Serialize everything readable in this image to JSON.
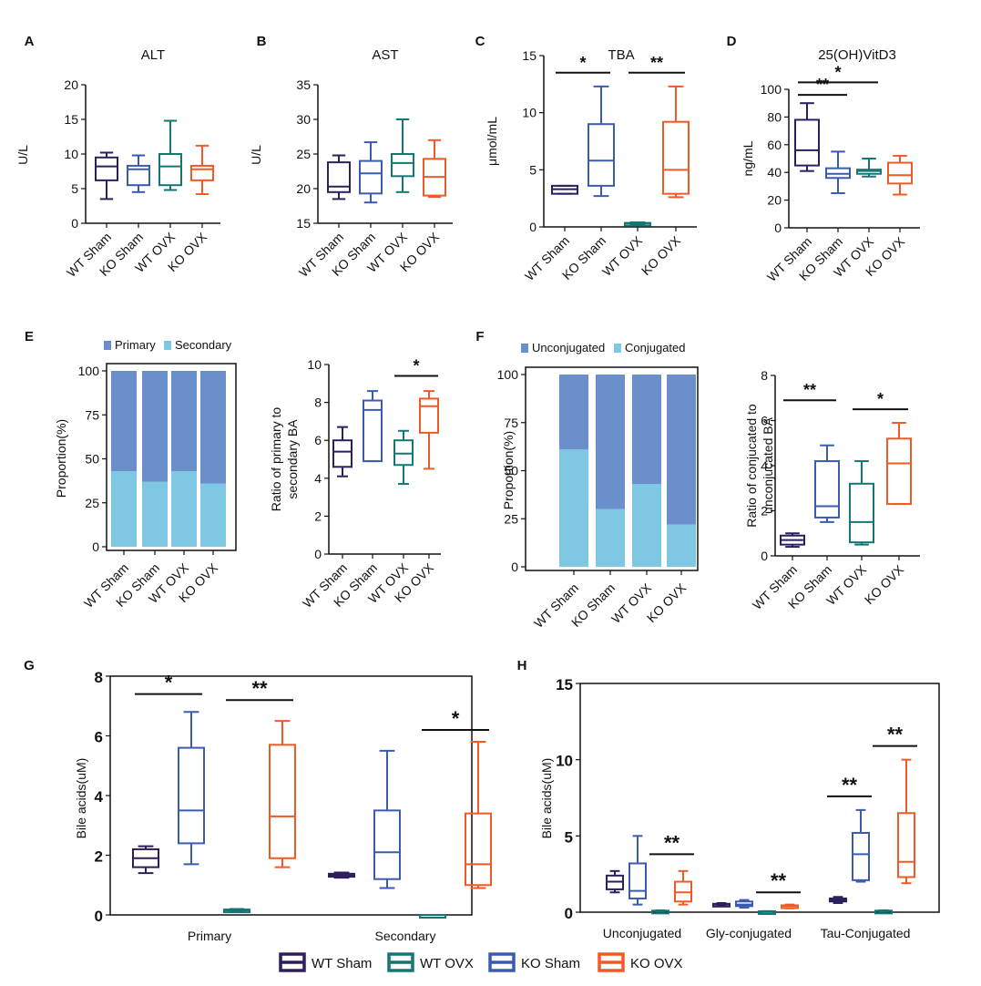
{
  "colors": {
    "wt_sham": "#2d1e5c",
    "ko_sham": "#3b5bb0",
    "wt_ovx": "#137774",
    "ko_ovx": "#f05a26",
    "primary": "#6a8fcb",
    "secondary": "#7ec8e3",
    "unconjugated": "#6a8fcb",
    "conjugated": "#7ec8e3"
  },
  "groups4": [
    "WT Sham",
    "KO Sham",
    "WT OVX",
    "KO OVX"
  ],
  "legend": [
    {
      "key": "wt_sham",
      "label": "WT Sham"
    },
    {
      "key": "wt_ovx",
      "label": "WT OVX"
    },
    {
      "key": "ko_sham",
      "label": "KO Sham"
    },
    {
      "key": "ko_ovx",
      "label": "KO OVX"
    }
  ],
  "chart_data": [
    {
      "panel": "A",
      "type": "box",
      "title": "ALT",
      "ylabel": "U/L",
      "ylim": [
        0,
        20
      ],
      "yticks": [
        0,
        5,
        10,
        15,
        20
      ],
      "boxes": [
        {
          "group": "WT Sham",
          "color": "wt_sham",
          "min": 3.5,
          "q1": 6.2,
          "median": 8.2,
          "q3": 9.5,
          "max": 10.2
        },
        {
          "group": "KO Sham",
          "color": "ko_sham",
          "min": 4.5,
          "q1": 5.5,
          "median": 7.8,
          "q3": 8.3,
          "max": 9.8
        },
        {
          "group": "WT OVX",
          "color": "wt_ovx",
          "min": 4.8,
          "q1": 5.5,
          "median": 8.2,
          "q3": 10,
          "max": 14.8
        },
        {
          "group": "KO OVX",
          "color": "ko_ovx",
          "min": 4.2,
          "q1": 6.2,
          "median": 7.8,
          "q3": 8.3,
          "max": 11.2
        }
      ],
      "sig": []
    },
    {
      "panel": "B",
      "type": "box",
      "title": "AST",
      "ylabel": "U/L",
      "ylim": [
        15,
        35
      ],
      "yticks": [
        15,
        20,
        25,
        30,
        35
      ],
      "boxes": [
        {
          "group": "WT Sham",
          "color": "wt_sham",
          "min": 18.5,
          "q1": 19.5,
          "median": 20.3,
          "q3": 23.8,
          "max": 24.8
        },
        {
          "group": "KO Sham",
          "color": "ko_sham",
          "min": 18,
          "q1": 19.3,
          "median": 22.2,
          "q3": 24,
          "max": 26.7
        },
        {
          "group": "WT OVX",
          "color": "wt_ovx",
          "min": 19.5,
          "q1": 21.8,
          "median": 23.7,
          "q3": 25,
          "max": 30
        },
        {
          "group": "KO OVX",
          "color": "ko_ovx",
          "min": 18.8,
          "q1": 19,
          "median": 21.7,
          "q3": 24.3,
          "max": 27
        }
      ],
      "sig": []
    },
    {
      "panel": "C",
      "type": "box",
      "title": "TBA",
      "ylabel": "μmol/mL",
      "ylim": [
        0,
        15
      ],
      "yticks": [
        0,
        5,
        10,
        15
      ],
      "boxes": [
        {
          "group": "WT Sham",
          "color": "wt_sham",
          "min": 2.9,
          "q1": 2.9,
          "median": 3.3,
          "q3": 3.6,
          "max": 3.6
        },
        {
          "group": "KO Sham",
          "color": "ko_sham",
          "min": 2.7,
          "q1": 3.6,
          "median": 5.8,
          "q3": 9,
          "max": 12.3
        },
        {
          "group": "WT OVX",
          "color": "wt_ovx",
          "min": 0.2,
          "q1": 0.25,
          "median": 0.3,
          "q3": 0.35,
          "max": 0.4
        },
        {
          "group": "KO OVX",
          "color": "ko_ovx",
          "min": 2.6,
          "q1": 2.9,
          "median": 5,
          "q3": 9.2,
          "max": 12.3
        }
      ],
      "sig": [
        {
          "from": 0,
          "to": 1,
          "y": 13.5,
          "label": "*"
        },
        {
          "from": 2,
          "to": 3,
          "y": 13.5,
          "label": "**"
        }
      ]
    },
    {
      "panel": "D",
      "type": "box",
      "title": "25(OH)VitD3",
      "ylabel": "ng/mL",
      "ylim": [
        0,
        100
      ],
      "yticks": [
        0,
        20,
        40,
        60,
        80,
        100
      ],
      "boxes": [
        {
          "group": "WT Sham",
          "color": "wt_sham",
          "min": 41,
          "q1": 45,
          "median": 56,
          "q3": 78,
          "max": 90
        },
        {
          "group": "KO Sham",
          "color": "ko_sham",
          "min": 25,
          "q1": 36,
          "median": 39,
          "q3": 43,
          "max": 55
        },
        {
          "group": "WT OVX",
          "color": "wt_ovx",
          "min": 37,
          "q1": 39,
          "median": 41,
          "q3": 42,
          "max": 50
        },
        {
          "group": "KO OVX",
          "color": "ko_ovx",
          "min": 24,
          "q1": 32,
          "median": 38,
          "q3": 47,
          "max": 52
        }
      ],
      "sig": [
        {
          "from": 0,
          "to": 1,
          "y": 96,
          "label": "**"
        },
        {
          "from": 0,
          "to": 2,
          "y": 105,
          "label": "*"
        }
      ]
    },
    {
      "panel": "E",
      "type": "stacked-bar",
      "ylabel": "Proportion(%)",
      "ylim": [
        0,
        100
      ],
      "yticks": [
        0,
        25,
        50,
        75,
        100
      ],
      "legend": [
        "Primary",
        "Secondary"
      ],
      "categories": [
        "WT Sham",
        "KO Sham",
        "WT OVX",
        "KO OVX"
      ],
      "series": [
        {
          "name": "Secondary",
          "color": "secondary",
          "values": [
            43,
            37,
            43,
            36
          ]
        },
        {
          "name": "Primary",
          "color": "primary",
          "values": [
            57,
            63,
            57,
            64
          ]
        }
      ]
    },
    {
      "panel": "E2",
      "type": "box",
      "ylabel": "Ratio of primary to secondary BA",
      "ylim": [
        0,
        10
      ],
      "yticks": [
        0,
        2,
        4,
        6,
        8,
        10
      ],
      "boxes": [
        {
          "group": "WT Sham",
          "color": "wt_sham",
          "min": 4.1,
          "q1": 4.6,
          "median": 5.4,
          "q3": 6,
          "max": 6.7
        },
        {
          "group": "KO Sham",
          "color": "ko_sham",
          "min": 4.9,
          "q1": 4.9,
          "median": 7.6,
          "q3": 8.1,
          "max": 8.6
        },
        {
          "group": "WT OVX",
          "color": "wt_ovx",
          "min": 3.7,
          "q1": 4.7,
          "median": 5.3,
          "q3": 6,
          "max": 6.5
        },
        {
          "group": "KO OVX",
          "color": "ko_ovx",
          "min": 4.5,
          "q1": 6.4,
          "median": 7.8,
          "q3": 8.2,
          "max": 8.6
        }
      ],
      "sig": [
        {
          "from": 2,
          "to": 3,
          "y": 9.4,
          "label": "*"
        }
      ]
    },
    {
      "panel": "F",
      "type": "stacked-bar",
      "ylabel": "Proportion(%)",
      "ylim": [
        0,
        100
      ],
      "yticks": [
        0,
        25,
        50,
        75,
        100
      ],
      "legend": [
        "Unconjugated",
        "Conjugated"
      ],
      "categories": [
        "WT Sham",
        "KO Sham",
        "WT OVX",
        "KO OVX"
      ],
      "series": [
        {
          "name": "Conjugated",
          "color": "conjugated",
          "values": [
            61,
            30,
            43,
            22
          ]
        },
        {
          "name": "Unconjugated",
          "color": "unconjugated",
          "values": [
            39,
            70,
            57,
            78
          ]
        }
      ]
    },
    {
      "panel": "F2",
      "type": "box",
      "ylabel": "Ratio of conjucated to unconjucated BA",
      "ylim": [
        0,
        8
      ],
      "yticks": [
        0,
        2,
        4,
        6,
        8
      ],
      "boxes": [
        {
          "group": "WT Sham",
          "color": "wt_sham",
          "min": 0.4,
          "q1": 0.5,
          "median": 0.7,
          "q3": 0.9,
          "max": 1
        },
        {
          "group": "KO Sham",
          "color": "ko_sham",
          "min": 1.5,
          "q1": 1.7,
          "median": 2.2,
          "q3": 4.2,
          "max": 4.9
        },
        {
          "group": "WT OVX",
          "color": "wt_ovx",
          "min": 0.5,
          "q1": 0.6,
          "median": 1.5,
          "q3": 3.2,
          "max": 4.2
        },
        {
          "group": "KO OVX",
          "color": "ko_ovx",
          "min": 2.3,
          "q1": 2.3,
          "median": 4.1,
          "q3": 5.2,
          "max": 5.9
        }
      ],
      "sig": [
        {
          "from": 0,
          "to": 1,
          "y": 6.9,
          "label": "**"
        },
        {
          "from": 2,
          "to": 3,
          "y": 6.5,
          "label": "*"
        }
      ]
    },
    {
      "panel": "G",
      "type": "box-grouped",
      "ylabel": "Bile acids(uM)",
      "ylim": [
        0,
        8
      ],
      "yticks": [
        0,
        2,
        4,
        6,
        8
      ],
      "categories": [
        "Primary",
        "Secondary"
      ],
      "order": [
        "WT Sham",
        "KO Sham",
        "WT OVX",
        "KO OVX"
      ],
      "boxes": [
        [
          {
            "color": "wt_sham",
            "min": 1.4,
            "q1": 1.6,
            "median": 1.9,
            "q3": 2.2,
            "max": 2.3
          },
          {
            "color": "ko_sham",
            "min": 1.7,
            "q1": 2.4,
            "median": 3.5,
            "q3": 5.6,
            "max": 6.8
          },
          {
            "color": "wt_ovx",
            "min": 0.1,
            "q1": 0.12,
            "median": 0.15,
            "q3": 0.18,
            "max": 0.2
          },
          {
            "color": "ko_ovx",
            "min": 1.6,
            "q1": 1.9,
            "median": 3.3,
            "q3": 5.7,
            "max": 6.5
          }
        ],
        [
          {
            "color": "wt_sham",
            "min": 1.25,
            "q1": 1.28,
            "median": 1.33,
            "q3": 1.38,
            "max": 1.42
          },
          {
            "color": "ko_sham",
            "min": 0.9,
            "q1": 1.2,
            "median": 2.1,
            "q3": 3.5,
            "max": 5.5
          },
          {
            "color": "wt_ovx",
            "min": 0.0,
            "q1": 0.0,
            "median": 0.0,
            "q3": 0.0,
            "max": 0.0
          },
          {
            "color": "ko_ovx",
            "min": 0.9,
            "q1": 1.0,
            "median": 1.7,
            "q3": 3.4,
            "max": 5.8
          }
        ]
      ],
      "sig": [
        {
          "cat": 0,
          "from": 0,
          "to": 1,
          "y": 7.4,
          "label": "*"
        },
        {
          "cat": 0,
          "from": 2,
          "to": 3,
          "y": 7.2,
          "label": "**"
        },
        {
          "cat": 1,
          "from": 2,
          "to": 3,
          "y": 6.2,
          "label": "*"
        }
      ]
    },
    {
      "panel": "H",
      "type": "box-grouped",
      "ylabel": "Bile acids(uM)",
      "ylim": [
        0,
        15
      ],
      "yticks": [
        0,
        5,
        10,
        15
      ],
      "categories": [
        "Unconjugated",
        "Gly-conjugated",
        "Tau-Conjugated"
      ],
      "order": [
        "WT Sham",
        "KO Sham",
        "WT OVX",
        "KO OVX"
      ],
      "boxes": [
        [
          {
            "color": "wt_sham",
            "min": 1.3,
            "q1": 1.5,
            "median": 2,
            "q3": 2.4,
            "max": 2.7
          },
          {
            "color": "ko_sham",
            "min": 0.5,
            "q1": 0.9,
            "median": 1.4,
            "q3": 3.2,
            "max": 5
          },
          {
            "color": "wt_ovx",
            "min": 0.05,
            "q1": 0.06,
            "median": 0.08,
            "q3": 0.1,
            "max": 0.12
          },
          {
            "color": "ko_ovx",
            "min": 0.5,
            "q1": 0.7,
            "median": 1.3,
            "q3": 2,
            "max": 2.7
          }
        ],
        [
          {
            "color": "wt_sham",
            "min": 0.4,
            "q1": 0.45,
            "median": 0.5,
            "q3": 0.55,
            "max": 0.6
          },
          {
            "color": "ko_sham",
            "min": 0.3,
            "q1": 0.4,
            "median": 0.5,
            "q3": 0.7,
            "max": 0.8
          },
          {
            "color": "wt_ovx",
            "min": 0.03,
            "q1": 0.04,
            "median": 0.05,
            "q3": 0.06,
            "max": 0.07
          },
          {
            "color": "ko_ovx",
            "min": 0.25,
            "q1": 0.3,
            "median": 0.4,
            "q3": 0.45,
            "max": 0.5
          }
        ],
        [
          {
            "color": "wt_sham",
            "min": 0.6,
            "q1": 0.7,
            "median": 0.8,
            "q3": 0.9,
            "max": 1
          },
          {
            "color": "ko_sham",
            "min": 2,
            "q1": 2.1,
            "median": 3.8,
            "q3": 5.2,
            "max": 6.7
          },
          {
            "color": "wt_ovx",
            "min": 0.05,
            "q1": 0.06,
            "median": 0.08,
            "q3": 0.1,
            "max": 0.12
          },
          {
            "color": "ko_ovx",
            "min": 1.9,
            "q1": 2.3,
            "median": 3.3,
            "q3": 6.5,
            "max": 10
          }
        ]
      ],
      "sig": [
        {
          "cat": 0,
          "from": 2,
          "to": 3,
          "y": 3.8,
          "label": "**"
        },
        {
          "cat": 1,
          "from": 2,
          "to": 3,
          "y": 1.3,
          "label": "**"
        },
        {
          "cat": 2,
          "from": 0,
          "to": 1,
          "y": 7.6,
          "label": "**"
        },
        {
          "cat": 2,
          "from": 2,
          "to": 3,
          "y": 10.9,
          "label": "**"
        }
      ]
    }
  ]
}
